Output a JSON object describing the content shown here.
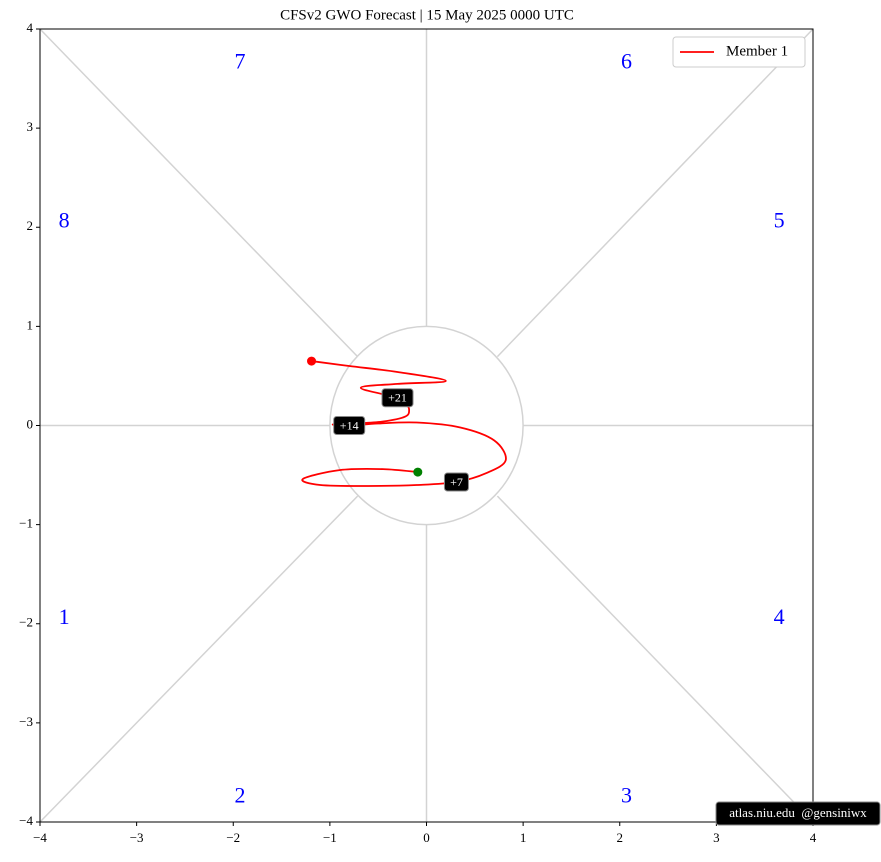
{
  "chart_data": {
    "type": "line",
    "title": "CFSv2 GWO Forecast  |  15  May  2025 0000 UTC",
    "series": [
      {
        "name": "Member 1",
        "color": "#ff0000",
        "x": [
          -0.09,
          -0.45,
          -0.9,
          -1.28,
          -1.1,
          -0.6,
          -0.1,
          0.31,
          0.62,
          0.82,
          0.7,
          0.35,
          -0.1,
          -0.5,
          -0.8,
          -0.97,
          -0.75,
          -0.45,
          -0.22,
          -0.18,
          -0.22,
          -0.3,
          -0.68,
          -0.3,
          0.2,
          -0.3,
          -0.8,
          -1.19
        ],
        "y": [
          -0.47,
          -0.44,
          -0.45,
          -0.54,
          -0.6,
          -0.61,
          -0.6,
          -0.57,
          -0.48,
          -0.35,
          -0.15,
          -0.02,
          0.03,
          0.02,
          0.0,
          0.01,
          0.02,
          0.04,
          0.09,
          0.16,
          0.23,
          0.28,
          0.38,
          0.42,
          0.45,
          0.54,
          0.6,
          0.65
        ]
      }
    ],
    "start_color": "#008000",
    "end_color": "#ff0000",
    "annotations": [
      "+7",
      "+14",
      "+21"
    ],
    "phase_labels": [
      "1",
      "2",
      "3",
      "4",
      "5",
      "6",
      "7",
      "8"
    ],
    "watermark": "atlas.niu.edu  @gensiniwx",
    "xlim": [
      -4,
      4
    ],
    "ylim": [
      -4,
      4
    ],
    "xticks": [
      {
        "value": -4,
        "label": "−4"
      },
      {
        "value": -3,
        "label": "−3"
      },
      {
        "value": -2,
        "label": "−2"
      },
      {
        "value": -1,
        "label": "−1"
      },
      0,
      1,
      2,
      3,
      4
    ],
    "yticks": [
      {
        "value": -4,
        "label": "−4"
      },
      {
        "value": -3,
        "label": "−3"
      },
      {
        "value": -2,
        "label": "−2"
      },
      {
        "value": -1,
        "label": "−1"
      },
      0,
      1,
      2,
      3,
      4
    ],
    "legend": "upper right"
  }
}
